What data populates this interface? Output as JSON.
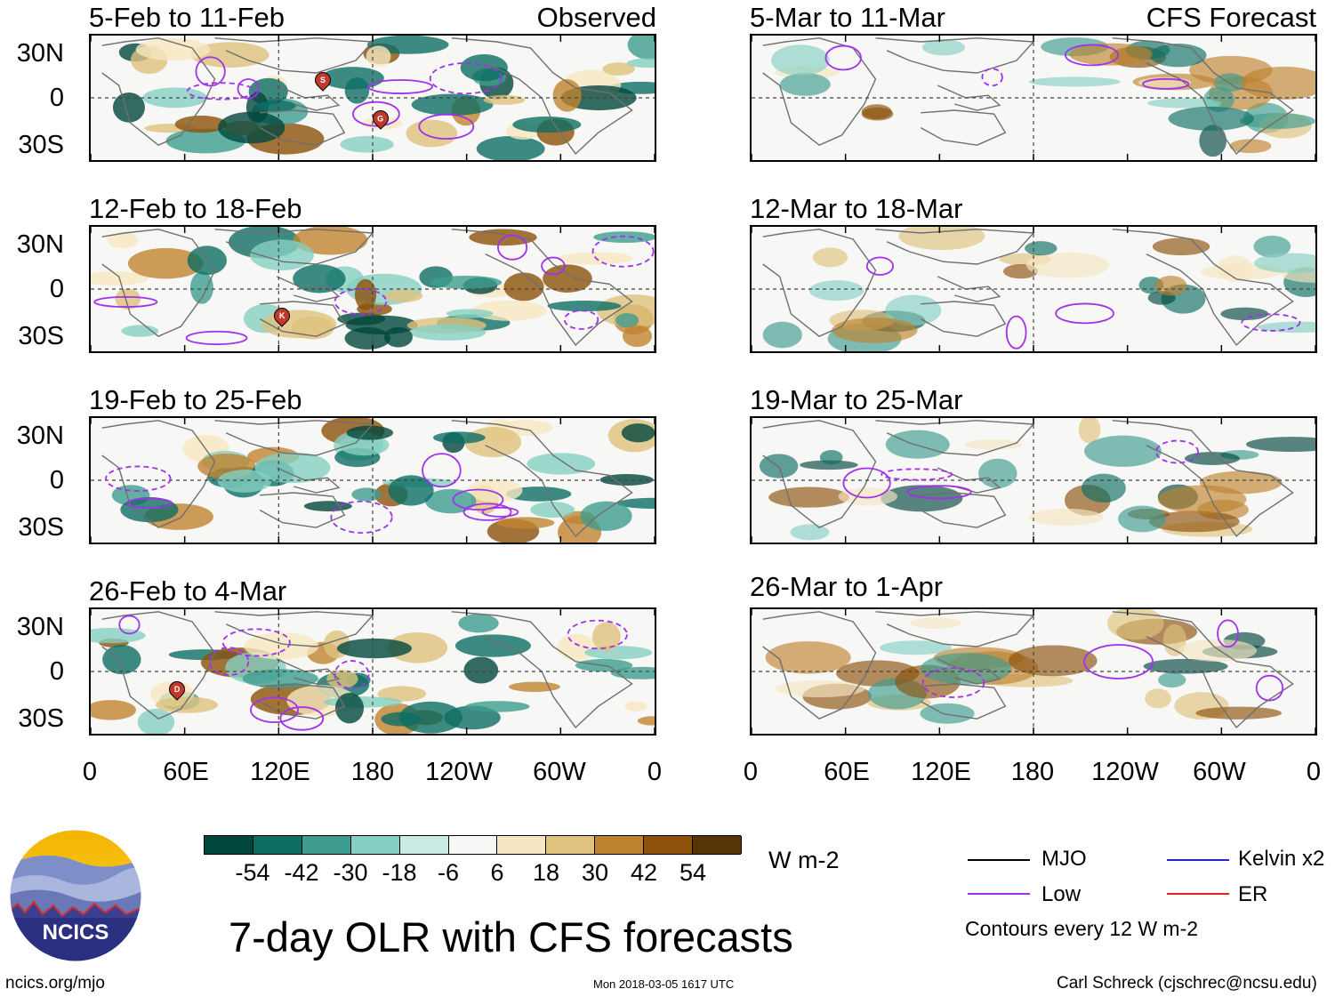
{
  "colors": {
    "scale": [
      "#01473d",
      "#0d6e64",
      "#3d9c8f",
      "#86cfc2",
      "#c9ebe4",
      "#f7f7f5",
      "#f6e7c2",
      "#dfc27d",
      "#bf8330",
      "#8c510a",
      "#573406"
    ],
    "mjo": "#000000",
    "low": "#a131ea",
    "kelvin": "#2222dd",
    "er": "#dd2222",
    "coast": "#6f6f6f"
  },
  "panels_observed": [
    {
      "title": "5-Feb to 11-Feb",
      "tag": "Observed"
    },
    {
      "title": "12-Feb to 18-Feb",
      "tag": ""
    },
    {
      "title": "19-Feb to 25-Feb",
      "tag": ""
    },
    {
      "title": "26-Feb to 4-Mar",
      "tag": ""
    }
  ],
  "panels_forecast": [
    {
      "title": "5-Mar to 11-Mar",
      "tag": "CFS Forecast"
    },
    {
      "title": "12-Mar to 18-Mar",
      "tag": ""
    },
    {
      "title": "19-Mar to 25-Mar",
      "tag": ""
    },
    {
      "title": "26-Mar to 1-Apr",
      "tag": ""
    }
  ],
  "lat_labels": [
    "30N",
    "0",
    "30S"
  ],
  "lon_labels": [
    "0",
    "60E",
    "120E",
    "180",
    "120W",
    "60W",
    "0"
  ],
  "storm_markers": [
    {
      "panel": 0,
      "label": "S"
    },
    {
      "panel": 0,
      "label": "G"
    },
    {
      "panel": 1,
      "label": "K"
    },
    {
      "panel": 3,
      "label": "D"
    }
  ],
  "colorbar": {
    "ticks": [
      "-54",
      "-42",
      "-30",
      "-18",
      "-6",
      "6",
      "18",
      "30",
      "42",
      "54"
    ],
    "units": "W m-2"
  },
  "legend": {
    "mjo": "MJO",
    "low": "Low",
    "kelvin": "Kelvin x2",
    "er": "ER",
    "note": "Contours every 12 W m-2"
  },
  "logo": {
    "text": "NCICS"
  },
  "main_title": "7-day OLR with CFS forecasts",
  "footer": {
    "url": "ncics.org/mjo",
    "timestamp": "Mon 2018-03-05 1617 UTC",
    "credit": "Carl Schreck (cjschrec@ncsu.edu)"
  }
}
